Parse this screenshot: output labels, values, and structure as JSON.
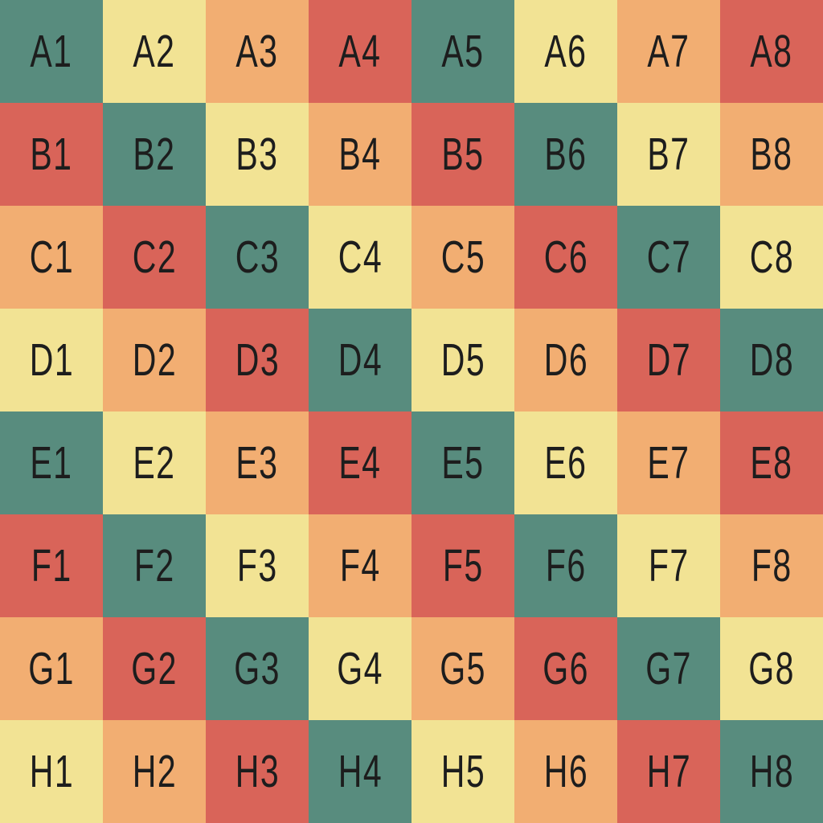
{
  "board": {
    "rows": 8,
    "cols": 8,
    "text_color": "#1d1d1d",
    "palette": {
      "teal": "#588c7e",
      "cream": "#f2e394",
      "orange": "#f2ae72",
      "red": "#d96459"
    },
    "cells": [
      [
        {
          "label": "A1",
          "color": "teal"
        },
        {
          "label": "A2",
          "color": "cream"
        },
        {
          "label": "A3",
          "color": "orange"
        },
        {
          "label": "A4",
          "color": "red"
        },
        {
          "label": "A5",
          "color": "teal"
        },
        {
          "label": "A6",
          "color": "cream"
        },
        {
          "label": "A7",
          "color": "orange"
        },
        {
          "label": "A8",
          "color": "red"
        }
      ],
      [
        {
          "label": "B1",
          "color": "red"
        },
        {
          "label": "B2",
          "color": "teal"
        },
        {
          "label": "B3",
          "color": "cream"
        },
        {
          "label": "B4",
          "color": "orange"
        },
        {
          "label": "B5",
          "color": "red"
        },
        {
          "label": "B6",
          "color": "teal"
        },
        {
          "label": "B7",
          "color": "cream"
        },
        {
          "label": "B8",
          "color": "orange"
        }
      ],
      [
        {
          "label": "C1",
          "color": "orange"
        },
        {
          "label": "C2",
          "color": "red"
        },
        {
          "label": "C3",
          "color": "teal"
        },
        {
          "label": "C4",
          "color": "cream"
        },
        {
          "label": "C5",
          "color": "orange"
        },
        {
          "label": "C6",
          "color": "red"
        },
        {
          "label": "C7",
          "color": "teal"
        },
        {
          "label": "C8",
          "color": "cream"
        }
      ],
      [
        {
          "label": "D1",
          "color": "cream"
        },
        {
          "label": "D2",
          "color": "orange"
        },
        {
          "label": "D3",
          "color": "red"
        },
        {
          "label": "D4",
          "color": "teal"
        },
        {
          "label": "D5",
          "color": "cream"
        },
        {
          "label": "D6",
          "color": "orange"
        },
        {
          "label": "D7",
          "color": "red"
        },
        {
          "label": "D8",
          "color": "teal"
        }
      ],
      [
        {
          "label": "E1",
          "color": "teal"
        },
        {
          "label": "E2",
          "color": "cream"
        },
        {
          "label": "E3",
          "color": "orange"
        },
        {
          "label": "E4",
          "color": "red"
        },
        {
          "label": "E5",
          "color": "teal"
        },
        {
          "label": "E6",
          "color": "cream"
        },
        {
          "label": "E7",
          "color": "orange"
        },
        {
          "label": "E8",
          "color": "red"
        }
      ],
      [
        {
          "label": "F1",
          "color": "red"
        },
        {
          "label": "F2",
          "color": "teal"
        },
        {
          "label": "F3",
          "color": "cream"
        },
        {
          "label": "F4",
          "color": "orange"
        },
        {
          "label": "F5",
          "color": "red"
        },
        {
          "label": "F6",
          "color": "teal"
        },
        {
          "label": "F7",
          "color": "cream"
        },
        {
          "label": "F8",
          "color": "orange"
        }
      ],
      [
        {
          "label": "G1",
          "color": "orange"
        },
        {
          "label": "G2",
          "color": "red"
        },
        {
          "label": "G3",
          "color": "teal"
        },
        {
          "label": "G4",
          "color": "cream"
        },
        {
          "label": "G5",
          "color": "orange"
        },
        {
          "label": "G6",
          "color": "red"
        },
        {
          "label": "G7",
          "color": "teal"
        },
        {
          "label": "G8",
          "color": "cream"
        }
      ],
      [
        {
          "label": "H1",
          "color": "cream"
        },
        {
          "label": "H2",
          "color": "orange"
        },
        {
          "label": "H3",
          "color": "red"
        },
        {
          "label": "H4",
          "color": "teal"
        },
        {
          "label": "H5",
          "color": "cream"
        },
        {
          "label": "H6",
          "color": "orange"
        },
        {
          "label": "H7",
          "color": "red"
        },
        {
          "label": "H8",
          "color": "teal"
        }
      ]
    ]
  }
}
